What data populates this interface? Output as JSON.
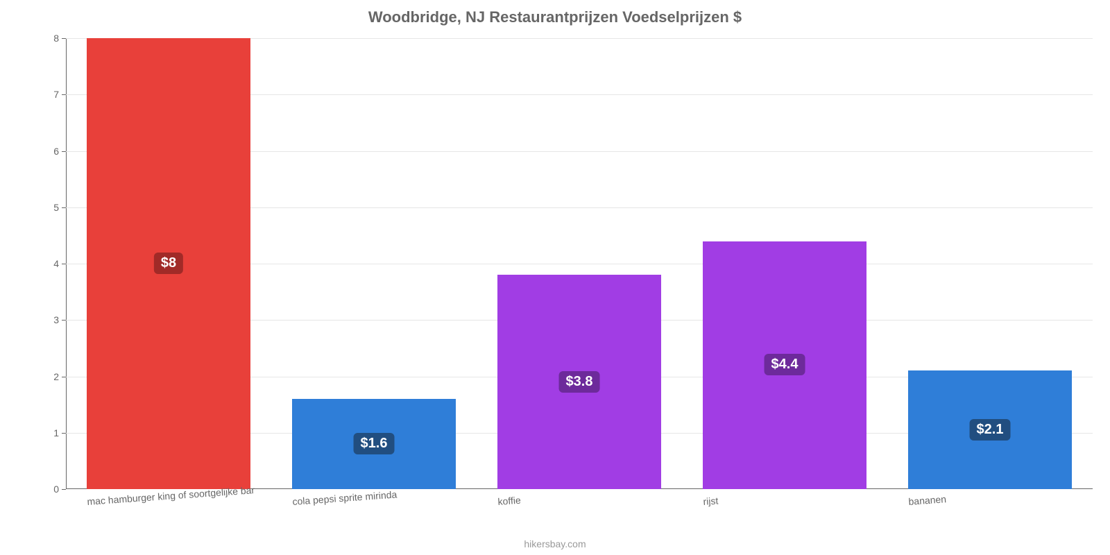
{
  "chart": {
    "type": "bar",
    "title": "Woodbridge, NJ Restaurantprijzen Voedselprijzen $",
    "title_fontsize": 22,
    "title_color": "#666666",
    "footer": "hikersbay.com",
    "footer_fontsize": 14,
    "footer_color": "#999999",
    "background_color": "#ffffff",
    "grid_color": "#e6e6e6",
    "axis_color": "#666666",
    "tick_label_color": "#666666",
    "tick_label_fontsize": 14,
    "x_tick_rotation_deg": -4,
    "ylim": [
      0,
      8
    ],
    "ytick_step": 1,
    "bar_width_ratio": 0.8,
    "categories": [
      "mac hamburger king of soortgelijke bar",
      "cola pepsi sprite mirinda",
      "koffie",
      "rijst",
      "bananen"
    ],
    "values": [
      8,
      1.6,
      3.8,
      4.4,
      2.1
    ],
    "value_labels": [
      "$8",
      "$1.6",
      "$3.8",
      "$4.4",
      "$2.1"
    ],
    "bar_colors": [
      "#e8403a",
      "#2f7ed8",
      "#a13de4",
      "#a13de4",
      "#2f7ed8"
    ],
    "label_bg_colors": [
      "#a12a27",
      "#214e80",
      "#6d2a9b",
      "#6d2a9b",
      "#214e80"
    ],
    "label_fontsize": 20
  }
}
